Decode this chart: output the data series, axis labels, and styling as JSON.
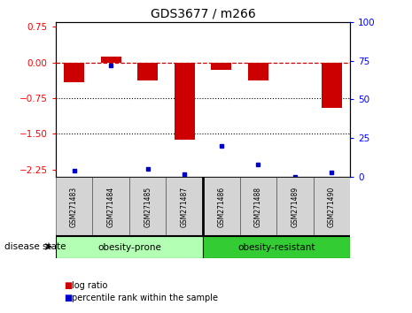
{
  "title": "GDS3677 / m266",
  "samples": [
    "GSM271483",
    "GSM271484",
    "GSM271485",
    "GSM271487",
    "GSM271486",
    "GSM271488",
    "GSM271489",
    "GSM271490"
  ],
  "log_ratio": [
    -0.42,
    0.13,
    -0.38,
    -1.62,
    -0.16,
    -0.38,
    0.0,
    -0.95
  ],
  "percentile_rank": [
    4.0,
    72.0,
    5.0,
    1.5,
    20.0,
    8.0,
    0.0,
    3.0
  ],
  "ylim_left": [
    -2.4,
    0.85
  ],
  "ylim_right": [
    0,
    100
  ],
  "yticks_left": [
    0.75,
    0,
    -0.75,
    -1.5,
    -2.25
  ],
  "yticks_right": [
    100,
    75,
    50,
    25,
    0
  ],
  "dotted_lines": [
    -0.75,
    -1.5
  ],
  "bar_color": "#cc0000",
  "dot_color": "#0000cc",
  "group_colors": [
    "#b3ffb3",
    "#33cc33"
  ],
  "disease_state_label": "disease state",
  "legend_items": [
    "log ratio",
    "percentile rank within the sample"
  ],
  "bar_width": 0.55,
  "background_color": "#ffffff"
}
